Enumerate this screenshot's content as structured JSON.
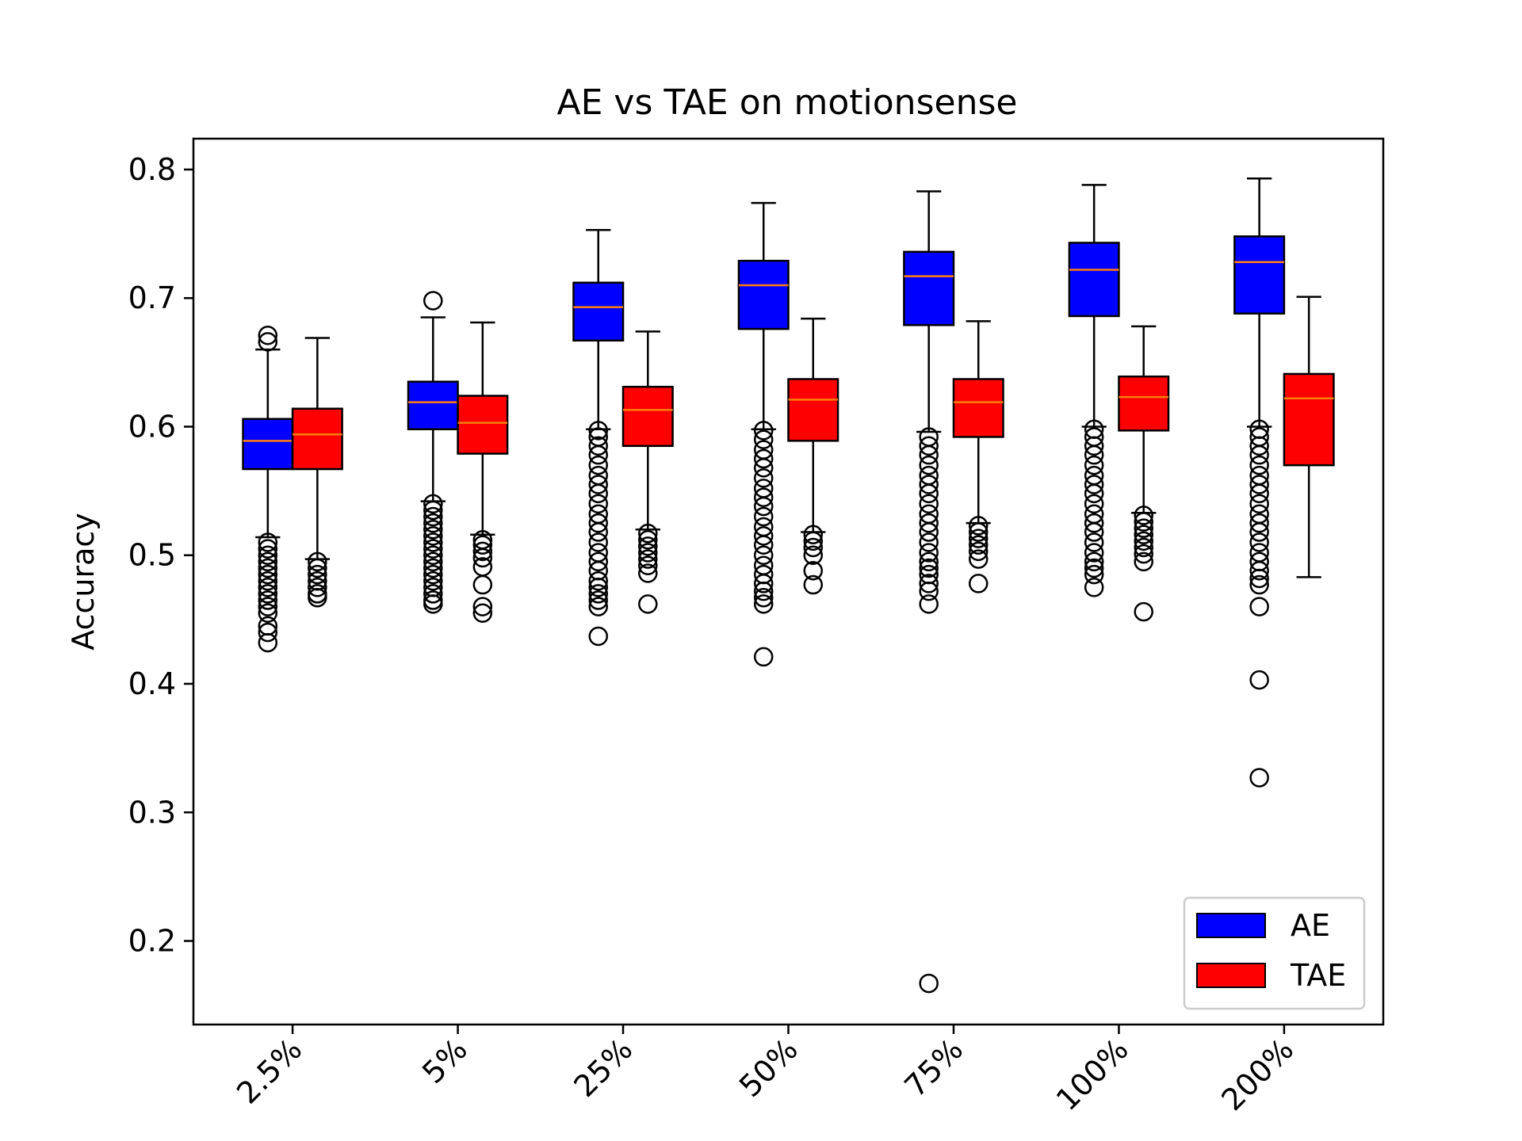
{
  "chart_data": {
    "type": "box",
    "title": "AE vs TAE on motionsense",
    "xlabel": "",
    "ylabel": "Accuracy",
    "ylim": [
      0.135,
      0.824
    ],
    "yticks": [
      0.2,
      0.3,
      0.4,
      0.5,
      0.6,
      0.7,
      0.8
    ],
    "ytick_labels": [
      "0.2",
      "0.3",
      "0.4",
      "0.5",
      "0.6",
      "0.7",
      "0.8"
    ],
    "categories": [
      "2.5%",
      "5%",
      "25%",
      "50%",
      "75%",
      "100%",
      "200%"
    ],
    "grid": false,
    "legend_position": "lower-right",
    "median_color": "#ff7f0e",
    "series": [
      {
        "name": "AE",
        "color": "#0000ff",
        "boxes": [
          {
            "whislo": 0.514,
            "q1": 0.567,
            "med": 0.589,
            "q3": 0.606,
            "whishi": 0.66,
            "fliers": [
              0.671,
              0.666,
              0.51,
              0.505,
              0.5,
              0.495,
              0.49,
              0.485,
              0.48,
              0.475,
              0.47,
              0.465,
              0.46,
              0.455,
              0.445,
              0.44,
              0.432
            ]
          },
          {
            "whislo": 0.542,
            "q1": 0.598,
            "med": 0.619,
            "q3": 0.635,
            "whishi": 0.685,
            "fliers": [
              0.698,
              0.54,
              0.535,
              0.53,
              0.525,
              0.52,
              0.515,
              0.51,
              0.505,
              0.5,
              0.495,
              0.49,
              0.485,
              0.48,
              0.475,
              0.47,
              0.465,
              0.462
            ]
          },
          {
            "whislo": 0.598,
            "q1": 0.667,
            "med": 0.693,
            "q3": 0.712,
            "whishi": 0.753,
            "fliers": [
              0.597,
              0.592,
              0.585,
              0.578,
              0.57,
              0.562,
              0.555,
              0.548,
              0.54,
              0.532,
              0.525,
              0.518,
              0.51,
              0.502,
              0.495,
              0.488,
              0.48,
              0.475,
              0.47,
              0.465,
              0.46,
              0.437
            ]
          },
          {
            "whislo": 0.598,
            "q1": 0.676,
            "med": 0.71,
            "q3": 0.729,
            "whishi": 0.774,
            "fliers": [
              0.597,
              0.59,
              0.582,
              0.575,
              0.568,
              0.56,
              0.552,
              0.545,
              0.538,
              0.53,
              0.522,
              0.515,
              0.508,
              0.5,
              0.492,
              0.485,
              0.478,
              0.472,
              0.467,
              0.462,
              0.421
            ]
          },
          {
            "whislo": 0.596,
            "q1": 0.679,
            "med": 0.717,
            "q3": 0.736,
            "whishi": 0.783,
            "fliers": [
              0.592,
              0.585,
              0.578,
              0.57,
              0.562,
              0.555,
              0.548,
              0.54,
              0.532,
              0.525,
              0.518,
              0.51,
              0.502,
              0.495,
              0.49,
              0.485,
              0.478,
              0.472,
              0.462,
              0.167
            ]
          },
          {
            "whislo": 0.6,
            "q1": 0.686,
            "med": 0.722,
            "q3": 0.743,
            "whishi": 0.788,
            "fliers": [
              0.598,
              0.592,
              0.585,
              0.578,
              0.57,
              0.562,
              0.555,
              0.548,
              0.54,
              0.532,
              0.525,
              0.518,
              0.51,
              0.502,
              0.495,
              0.49,
              0.485,
              0.475
            ]
          },
          {
            "whislo": 0.6,
            "q1": 0.688,
            "med": 0.728,
            "q3": 0.748,
            "whishi": 0.793,
            "fliers": [
              0.598,
              0.592,
              0.585,
              0.578,
              0.57,
              0.562,
              0.555,
              0.548,
              0.54,
              0.532,
              0.525,
              0.518,
              0.51,
              0.502,
              0.495,
              0.488,
              0.482,
              0.477,
              0.46,
              0.403,
              0.327
            ]
          }
        ]
      },
      {
        "name": "TAE",
        "color": "#ff0000",
        "boxes": [
          {
            "whislo": 0.497,
            "q1": 0.567,
            "med": 0.594,
            "q3": 0.614,
            "whishi": 0.669,
            "fliers": [
              0.495,
              0.49,
              0.485,
              0.48,
              0.475,
              0.47,
              0.467
            ]
          },
          {
            "whislo": 0.516,
            "q1": 0.579,
            "med": 0.603,
            "q3": 0.624,
            "whishi": 0.681,
            "fliers": [
              0.512,
              0.508,
              0.503,
              0.498,
              0.491,
              0.477,
              0.46,
              0.455
            ]
          },
          {
            "whislo": 0.52,
            "q1": 0.585,
            "med": 0.613,
            "q3": 0.631,
            "whishi": 0.674,
            "fliers": [
              0.517,
              0.512,
              0.507,
              0.502,
              0.497,
              0.492,
              0.486,
              0.462
            ]
          },
          {
            "whislo": 0.518,
            "q1": 0.589,
            "med": 0.621,
            "q3": 0.637,
            "whishi": 0.684,
            "fliers": [
              0.516,
              0.511,
              0.506,
              0.5,
              0.488,
              0.477
            ]
          },
          {
            "whislo": 0.525,
            "q1": 0.592,
            "med": 0.619,
            "q3": 0.637,
            "whishi": 0.682,
            "fliers": [
              0.523,
              0.518,
              0.513,
              0.508,
              0.503,
              0.497,
              0.478
            ]
          },
          {
            "whislo": 0.533,
            "q1": 0.597,
            "med": 0.623,
            "q3": 0.639,
            "whishi": 0.678,
            "fliers": [
              0.531,
              0.526,
              0.521,
              0.516,
              0.511,
              0.506,
              0.501,
              0.495,
              0.456
            ]
          },
          {
            "whislo": 0.483,
            "q1": 0.57,
            "med": 0.622,
            "q3": 0.641,
            "whishi": 0.701,
            "fliers": []
          }
        ]
      }
    ]
  }
}
